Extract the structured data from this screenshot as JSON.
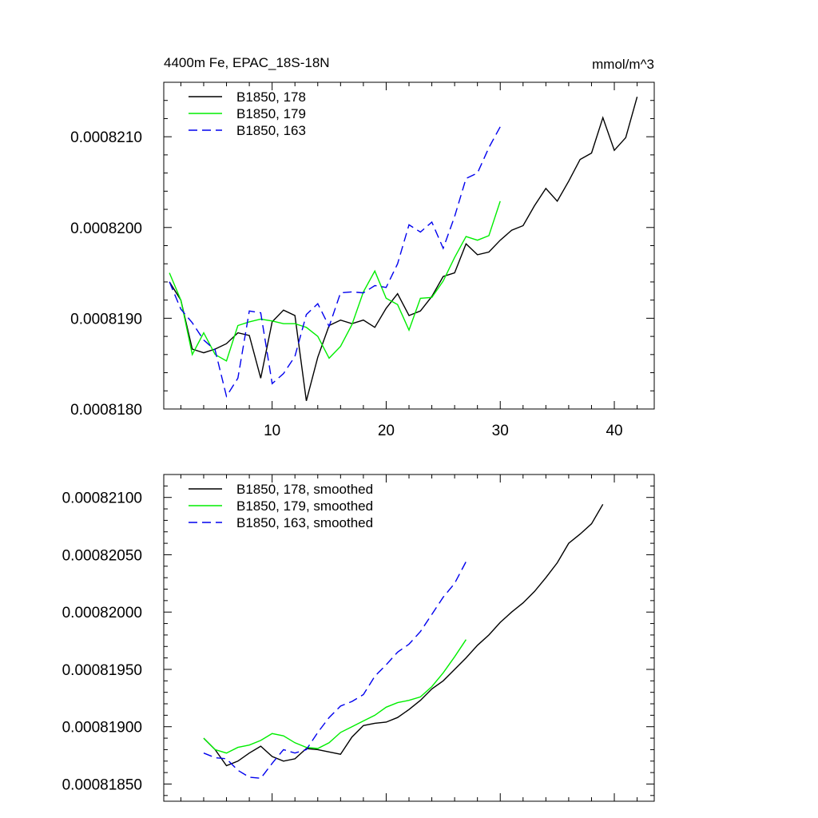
{
  "chart_data": [
    {
      "type": "line",
      "title": "4400m Fe, EPAC_18S-18N",
      "units": "mmol/m^3",
      "xlim": [
        0.5,
        43.5
      ],
      "ylim": [
        0.000818,
        0.0008216
      ],
      "x_ticks": [
        10,
        20,
        30,
        40
      ],
      "y_ticks": [
        0.000818,
        0.000819,
        0.00082,
        0.000821
      ],
      "y_tick_labels": [
        "0.0008180",
        "0.0008190",
        "0.0008200",
        "0.0008210"
      ],
      "legend_position": "top-left",
      "series": [
        {
          "name": "B1850, 178",
          "color": "#000000",
          "dash": "solid",
          "x_start": 1,
          "values": [
            0.0008194,
            0.0008192,
            0.00081866,
            0.00081862,
            0.00081866,
            0.00081872,
            0.00081884,
            0.00081881,
            0.00081834,
            0.00081896,
            0.00081909,
            0.00081903,
            0.00081809,
            0.00081857,
            0.00081892,
            0.00081898,
            0.00081894,
            0.00081898,
            0.0008189,
            0.00081911,
            0.00081927,
            0.00081903,
            0.00081908,
            0.00081924,
            0.00081946,
            0.0008195,
            0.00081982,
            0.0008197,
            0.00081973,
            0.00081986,
            0.00081997,
            0.00082002,
            0.00082024,
            0.00082043,
            0.00082029,
            0.00082051,
            0.00082075,
            0.00082082,
            0.00082121,
            0.00082085,
            0.00082099,
            0.00082144
          ]
        },
        {
          "name": "B1850, 179",
          "color": "#00ee00",
          "dash": "solid",
          "x_start": 1,
          "values": [
            0.0008195,
            0.0008192,
            0.0008186,
            0.00081884,
            0.0008186,
            0.00081853,
            0.00081892,
            0.00081896,
            0.00081899,
            0.00081897,
            0.00081894,
            0.00081894,
            0.0008189,
            0.0008188,
            0.00081856,
            0.00081869,
            0.00081893,
            0.00081929,
            0.00081952,
            0.00081922,
            0.00081915,
            0.00081887,
            0.00081922,
            0.00081923,
            0.00081941,
            0.00081967,
            0.0008199,
            0.00081986,
            0.00081991,
            0.00082029
          ]
        },
        {
          "name": "B1850, 163",
          "color": "#0000ee",
          "dash": "dashed",
          "x_start": 1,
          "values": [
            0.0008194,
            0.0008191,
            0.00081895,
            0.00081876,
            0.00081865,
            0.00081814,
            0.00081834,
            0.00081908,
            0.00081906,
            0.00081828,
            0.00081839,
            0.00081858,
            0.00081904,
            0.00081916,
            0.00081891,
            0.00081928,
            0.00081929,
            0.00081928,
            0.00081936,
            0.00081934,
            0.0008196,
            0.00082003,
            0.00081995,
            0.00082006,
            0.00081977,
            0.00082012,
            0.00082054,
            0.0008206,
            0.00082088,
            0.00082111
          ]
        }
      ]
    },
    {
      "type": "line",
      "xlim": [
        0.5,
        43.5
      ],
      "ylim": [
        0.00081835,
        0.0008212
      ],
      "x_ticks": [
        10,
        20,
        30,
        40
      ],
      "y_ticks": [
        0.0008185,
        0.000819,
        0.0008195,
        0.00082,
        0.0008205,
        0.000821
      ],
      "y_tick_labels": [
        "0.00081850",
        "0.00081900",
        "0.00081950",
        "0.00082000",
        "0.00082050",
        "0.00082100"
      ],
      "legend_position": "top-left",
      "series": [
        {
          "name": "B1850, 178, smoothed",
          "color": "#000000",
          "dash": "solid",
          "x_start": 4,
          "values": [
            0.0008189,
            0.0008188,
            0.00081866,
            0.0008187,
            0.00081877,
            0.00081883,
            0.00081874,
            0.0008187,
            0.00081872,
            0.00081881,
            0.0008188,
            0.00081878,
            0.00081876,
            0.00081891,
            0.00081901,
            0.00081903,
            0.00081904,
            0.00081908,
            0.00081915,
            0.00081923,
            0.00081933,
            0.0008194,
            0.0008195,
            0.0008196,
            0.00081971,
            0.0008198,
            0.00081991,
            0.00082,
            0.00082008,
            0.00082018,
            0.0008203,
            0.00082043,
            0.0008206,
            0.00082068,
            0.00082077,
            0.00082094
          ]
        },
        {
          "name": "B1850, 179, smoothed",
          "color": "#00ee00",
          "dash": "solid",
          "x_start": 4,
          "values": [
            0.0008189,
            0.0008188,
            0.00081877,
            0.00081882,
            0.00081884,
            0.00081888,
            0.00081894,
            0.00081892,
            0.00081886,
            0.00081882,
            0.00081881,
            0.00081886,
            0.00081895,
            0.000819,
            0.00081905,
            0.0008191,
            0.00081917,
            0.00081921,
            0.00081923,
            0.00081926,
            0.00081935,
            0.00081947,
            0.00081961,
            0.00081976
          ]
        },
        {
          "name": "B1850, 163, smoothed",
          "color": "#0000ee",
          "dash": "dashed",
          "x_start": 4,
          "values": [
            0.00081877,
            0.00081873,
            0.00081872,
            0.00081862,
            0.00081856,
            0.00081855,
            0.00081868,
            0.0008188,
            0.00081877,
            0.0008188,
            0.00081895,
            0.00081908,
            0.00081918,
            0.00081922,
            0.00081928,
            0.00081944,
            0.00081954,
            0.00081965,
            0.00081972,
            0.00081983,
            0.00081998,
            0.00082013,
            0.00082025,
            0.00082044
          ]
        }
      ]
    }
  ]
}
